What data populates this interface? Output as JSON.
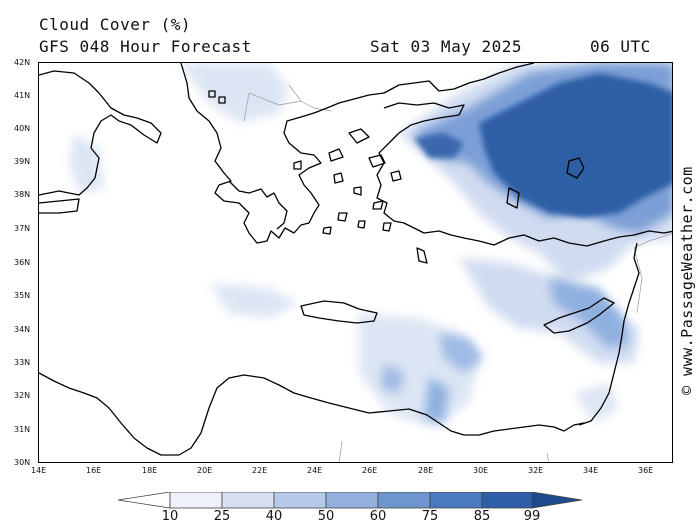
{
  "header": {
    "title": "Cloud Cover (%)",
    "model": "GFS 048 Hour Forecast",
    "date": "Sat 03 May 2025",
    "time": "06 UTC"
  },
  "credit": "© www.PassageWeather.com",
  "lat_labels": [
    "42N",
    "41N",
    "40N",
    "39N",
    "38N",
    "37N",
    "36N",
    "35N",
    "34N",
    "33N",
    "32N",
    "31N",
    "30N"
  ],
  "lon_labels": [
    "14E",
    "16E",
    "18E",
    "20E",
    "22E",
    "24E",
    "26E",
    "28E",
    "30E",
    "32E",
    "34E",
    "36E"
  ],
  "scale": {
    "ticks": [
      "10",
      "25",
      "40",
      "50",
      "60",
      "75",
      "85",
      "99"
    ],
    "colors": [
      "#ffffff",
      "#eef2fa",
      "#d6e0f2",
      "#b6c9e8",
      "#93b0dd",
      "#6f95d0",
      "#4b79c0",
      "#2d5ea8",
      "#1d4a8c"
    ]
  },
  "colors": {
    "cloud_dark": "#2d5ea8",
    "cloud_mid": "#6f95d0",
    "cloud_light": "#c9d7ef"
  }
}
